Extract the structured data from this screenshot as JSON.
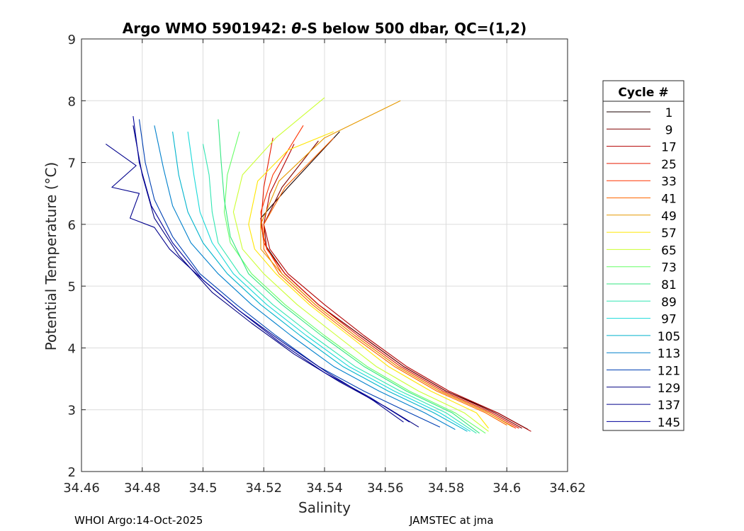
{
  "footer": {
    "left": "WHOI Argo:14-Oct-2025",
    "right": "JAMSTEC at jma"
  },
  "chart_data": {
    "type": "line",
    "title_prefix": "Argo WMO 5901942: ",
    "title_symbol": "θ",
    "title_suffix": "-S below 500 dbar,  QC=(1,2)",
    "xlabel": "Salinity",
    "ylabel": "Potential Temperature (°C)",
    "xlim": [
      34.46,
      34.62
    ],
    "ylim": [
      2,
      9
    ],
    "xticks": [
      "34.46",
      "34.48",
      "34.5",
      "34.52",
      "34.54",
      "34.56",
      "34.58",
      "34.6",
      "34.62"
    ],
    "yticks": [
      "2",
      "3",
      "4",
      "5",
      "6",
      "7",
      "8",
      "9"
    ],
    "grid": true,
    "legend": {
      "title": "Cycle #",
      "placement": "right-outside",
      "entries": [
        "1",
        "9",
        "17",
        "25",
        "33",
        "41",
        "49",
        "57",
        "65",
        "73",
        "81",
        "89",
        "97",
        "105",
        "113",
        "121",
        "129",
        "137",
        "145"
      ],
      "colors": [
        "#1a0000",
        "#800000",
        "#b20000",
        "#e61a00",
        "#ff3300",
        "#ff6600",
        "#e69900",
        "#ffe600",
        "#ccff33",
        "#66ff66",
        "#33e680",
        "#33e6b3",
        "#1ad9d9",
        "#00b3cc",
        "#0080cc",
        "#0040b3",
        "#000080",
        "#00008c",
        "#000099"
      ]
    },
    "series": [
      {
        "name": "Cycle 1",
        "color": "#1a0000",
        "x": [
          34.545,
          34.528,
          34.519,
          34.52,
          34.527,
          34.538,
          34.552,
          34.566,
          34.58,
          34.597,
          34.607
        ],
        "y": [
          7.5,
          6.6,
          6.1,
          5.7,
          5.2,
          4.7,
          4.2,
          3.7,
          3.3,
          2.95,
          2.68
        ]
      },
      {
        "name": "Cycle 9",
        "color": "#800000",
        "x": [
          34.538,
          34.526,
          34.52,
          34.521,
          34.527,
          34.538,
          34.552,
          34.566,
          34.58,
          34.596,
          34.605
        ],
        "y": [
          7.35,
          6.6,
          6.0,
          5.6,
          5.2,
          4.7,
          4.2,
          3.7,
          3.3,
          2.95,
          2.7
        ]
      },
      {
        "name": "Cycle 17",
        "color": "#b20000",
        "x": [
          34.53,
          34.522,
          34.52,
          34.522,
          34.528,
          34.54,
          34.553,
          34.567,
          34.581,
          34.597,
          34.608
        ],
        "y": [
          7.3,
          6.5,
          6.0,
          5.6,
          5.2,
          4.7,
          4.2,
          3.7,
          3.3,
          2.95,
          2.65
        ]
      },
      {
        "name": "Cycle 25",
        "color": "#e61a00",
        "x": [
          34.523,
          34.52,
          34.519,
          34.521,
          34.527,
          34.538,
          34.551,
          34.565,
          34.579,
          34.595,
          34.604
        ],
        "y": [
          7.4,
          6.6,
          6.0,
          5.6,
          5.2,
          4.7,
          4.2,
          3.7,
          3.3,
          2.95,
          2.7
        ]
      },
      {
        "name": "Cycle 33",
        "color": "#ff3300",
        "x": [
          34.533,
          34.523,
          34.519,
          34.52,
          34.526,
          34.537,
          34.55,
          34.564,
          34.578,
          34.594,
          34.603
        ],
        "y": [
          7.6,
          6.8,
          6.2,
          5.7,
          5.2,
          4.7,
          4.2,
          3.7,
          3.3,
          2.95,
          2.7
        ]
      },
      {
        "name": "Cycle 41",
        "color": "#ff6600",
        "x": [
          34.543,
          34.527,
          34.52,
          34.52,
          34.525,
          34.536,
          34.549,
          34.563,
          34.577,
          34.593,
          34.6
        ],
        "y": [
          7.4,
          6.6,
          6.0,
          5.6,
          5.2,
          4.7,
          4.2,
          3.7,
          3.3,
          2.95,
          2.75
        ]
      },
      {
        "name": "Cycle 49",
        "color": "#e69900",
        "x": [
          34.565,
          34.54,
          34.525,
          34.519,
          34.519,
          34.526,
          34.537,
          34.55,
          34.564,
          34.578,
          34.594,
          34.602
        ],
        "y": [
          8.0,
          7.4,
          6.7,
          6.0,
          5.6,
          5.2,
          4.7,
          4.2,
          3.7,
          3.3,
          2.95,
          2.72
        ]
      },
      {
        "name": "Cycle 57",
        "color": "#ffe600",
        "x": [
          34.543,
          34.528,
          34.518,
          34.515,
          34.517,
          34.524,
          34.535,
          34.548,
          34.561,
          34.575,
          34.59,
          34.594
        ],
        "y": [
          7.5,
          7.2,
          6.7,
          6.0,
          5.6,
          5.2,
          4.7,
          4.2,
          3.7,
          3.3,
          2.95,
          2.7
        ]
      },
      {
        "name": "Cycle 65",
        "color": "#ccff33",
        "x": [
          34.54,
          34.524,
          34.513,
          34.51,
          34.513,
          34.52,
          34.531,
          34.544,
          34.557,
          34.571,
          34.586,
          34.594
        ],
        "y": [
          8.05,
          7.4,
          6.8,
          6.2,
          5.6,
          5.2,
          4.7,
          4.2,
          3.7,
          3.3,
          2.95,
          2.65
        ]
      },
      {
        "name": "Cycle 73",
        "color": "#66ff66",
        "x": [
          34.512,
          34.508,
          34.507,
          34.509,
          34.516,
          34.527,
          34.54,
          34.554,
          34.568,
          34.583,
          34.593
        ],
        "y": [
          7.5,
          6.8,
          6.2,
          5.7,
          5.2,
          4.7,
          4.2,
          3.7,
          3.3,
          2.95,
          2.62
        ]
      },
      {
        "name": "Cycle 81",
        "color": "#33e680",
        "x": [
          34.505,
          34.506,
          34.507,
          34.509,
          34.515,
          34.526,
          34.539,
          34.553,
          34.567,
          34.582,
          34.591
        ],
        "y": [
          7.7,
          7.0,
          6.4,
          5.8,
          5.2,
          4.7,
          4.2,
          3.7,
          3.3,
          2.95,
          2.62
        ]
      },
      {
        "name": "Cycle 89",
        "color": "#33e6b3",
        "x": [
          34.5,
          34.502,
          34.503,
          34.505,
          34.512,
          34.523,
          34.536,
          34.55,
          34.565,
          34.58,
          34.59
        ],
        "y": [
          7.3,
          6.8,
          6.2,
          5.7,
          5.2,
          4.7,
          4.2,
          3.7,
          3.3,
          2.95,
          2.62
        ]
      },
      {
        "name": "Cycle 97",
        "color": "#1ad9d9",
        "x": [
          34.495,
          34.497,
          34.499,
          34.503,
          34.51,
          34.521,
          34.534,
          34.548,
          34.563,
          34.578,
          34.588
        ],
        "y": [
          7.5,
          6.8,
          6.2,
          5.7,
          5.2,
          4.7,
          4.2,
          3.7,
          3.3,
          2.95,
          2.65
        ]
      },
      {
        "name": "Cycle 105",
        "color": "#00b3cc",
        "x": [
          34.49,
          34.492,
          34.495,
          34.5,
          34.508,
          34.519,
          34.532,
          34.546,
          34.561,
          34.576,
          34.587
        ],
        "y": [
          7.5,
          6.8,
          6.2,
          5.7,
          5.2,
          4.7,
          4.2,
          3.7,
          3.3,
          2.95,
          2.65
        ]
      },
      {
        "name": "Cycle 113",
        "color": "#0080cc",
        "x": [
          34.484,
          34.487,
          34.49,
          34.496,
          34.505,
          34.516,
          34.529,
          34.543,
          34.558,
          34.573,
          34.583
        ],
        "y": [
          7.6,
          6.9,
          6.3,
          5.7,
          5.2,
          4.7,
          4.2,
          3.7,
          3.3,
          2.95,
          2.68
        ]
      },
      {
        "name": "Cycle 121",
        "color": "#0040b3",
        "x": [
          34.479,
          34.481,
          34.484,
          34.49,
          34.499,
          34.511,
          34.524,
          34.538,
          34.553,
          34.568,
          34.578
        ],
        "y": [
          7.7,
          7.0,
          6.4,
          5.8,
          5.2,
          4.7,
          4.2,
          3.7,
          3.3,
          2.95,
          2.72
        ]
      },
      {
        "name": "Cycle 129",
        "color": "#000080",
        "x": [
          34.477,
          34.48,
          34.484,
          34.492,
          34.503,
          34.516,
          34.53,
          34.545,
          34.56,
          34.571
        ],
        "y": [
          7.6,
          6.8,
          6.1,
          5.5,
          4.9,
          4.4,
          3.9,
          3.45,
          3.05,
          2.72
        ]
      },
      {
        "name": "Cycle 137",
        "color": "#00008c",
        "x": [
          34.468,
          34.478,
          34.47,
          34.479,
          34.476,
          34.484,
          34.489,
          34.5,
          34.512,
          34.526,
          34.541,
          34.556,
          34.566
        ],
        "y": [
          7.3,
          6.95,
          6.6,
          6.5,
          6.1,
          5.95,
          5.6,
          5.1,
          4.6,
          4.1,
          3.6,
          3.15,
          2.8
        ]
      },
      {
        "name": "Cycle 145",
        "color": "#000099",
        "x": [
          34.477,
          34.479,
          34.483,
          34.49,
          34.5,
          34.512,
          34.525,
          34.54,
          34.555,
          34.568
        ],
        "y": [
          7.75,
          7.0,
          6.3,
          5.7,
          5.1,
          4.6,
          4.1,
          3.6,
          3.2,
          2.8
        ]
      }
    ]
  }
}
